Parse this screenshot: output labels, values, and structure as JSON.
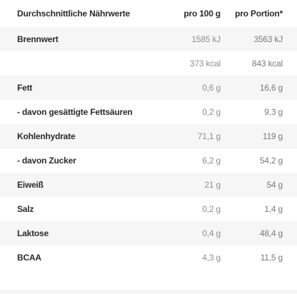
{
  "header": {
    "label": "Durchschnittliche Nährwerte",
    "per_100g": "pro 100 g",
    "per_portion": "pro Portion*"
  },
  "rows": [
    {
      "label": "Brennwert",
      "per_100g": "1585 kJ",
      "per_portion": "3563 kJ"
    },
    {
      "label": "",
      "per_100g": "373 kcal",
      "per_portion": "843 kcal"
    },
    {
      "label": "Fett",
      "per_100g": "0,6 g",
      "per_portion": "16,6 g"
    },
    {
      "label": "- davon gesättigte Fettsäuren",
      "per_100g": "0,2 g",
      "per_portion": "9,3 g"
    },
    {
      "label": "Kohlenhydrate",
      "per_100g": "71,1 g",
      "per_portion": "119 g"
    },
    {
      "label": "- davon Zucker",
      "per_100g": "6,2 g",
      "per_portion": "54,2 g"
    },
    {
      "label": "Eiweiß",
      "per_100g": "21 g",
      "per_portion": "54 g"
    },
    {
      "label": "Salz",
      "per_100g": "0,2 g",
      "per_portion": "1,4 g"
    },
    {
      "label": "Laktose",
      "per_100g": "0,4 g",
      "per_portion": "48,4 g"
    },
    {
      "label": "BCAA",
      "per_100g": "4,3 g",
      "per_portion": "11,5 g"
    }
  ]
}
